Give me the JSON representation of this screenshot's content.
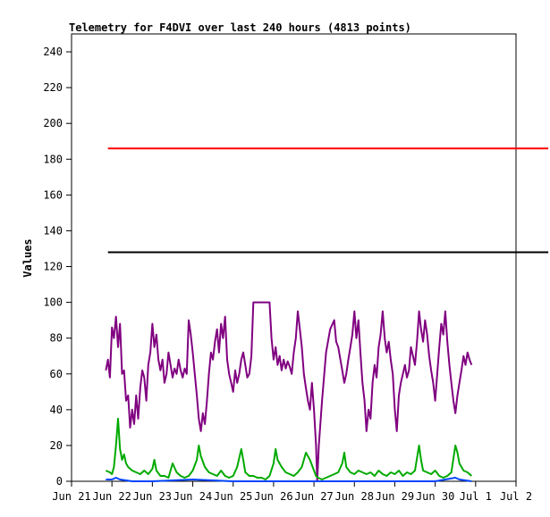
{
  "chart_data": {
    "type": "line",
    "title": "Telemetry for F4DVI over last 240 hours (4813 points)",
    "xlabel": "",
    "ylabel": "Values",
    "ylim": [
      0,
      250
    ],
    "yticks": [
      0,
      20,
      40,
      60,
      80,
      100,
      120,
      140,
      160,
      180,
      200,
      220,
      240
    ],
    "xlim": [
      "Jun 21",
      "Jul 2"
    ],
    "x_tick_labels": [
      "Jun 21",
      "Jun 22",
      "Jun 23",
      "Jun 24",
      "Jun 25",
      "Jun 26",
      "Jun 27",
      "Jun 28",
      "Jun 29",
      "Jun 30",
      "Jul 1",
      "Jul 2"
    ],
    "grid": false,
    "legend": "none",
    "series": [
      {
        "color": "#ff0000",
        "points": [
          [
            21.9,
            186
          ],
          [
            22.2,
            186
          ],
          [
            32.8,
            186
          ]
        ]
      },
      {
        "color": "#000000",
        "points": [
          [
            21.9,
            128
          ],
          [
            22.2,
            128
          ],
          [
            32.8,
            128
          ]
        ]
      },
      {
        "color": "#800080",
        "points": [
          [
            21.85,
            62
          ],
          [
            21.9,
            68
          ],
          [
            21.95,
            58
          ],
          [
            22.0,
            86
          ],
          [
            22.05,
            80
          ],
          [
            22.1,
            92
          ],
          [
            22.15,
            75
          ],
          [
            22.2,
            88
          ],
          [
            22.25,
            60
          ],
          [
            22.3,
            62
          ],
          [
            22.35,
            45
          ],
          [
            22.4,
            48
          ],
          [
            22.45,
            30
          ],
          [
            22.5,
            40
          ],
          [
            22.55,
            32
          ],
          [
            22.6,
            48
          ],
          [
            22.65,
            35
          ],
          [
            22.7,
            52
          ],
          [
            22.75,
            62
          ],
          [
            22.8,
            58
          ],
          [
            22.85,
            45
          ],
          [
            22.9,
            65
          ],
          [
            22.95,
            72
          ],
          [
            23.0,
            88
          ],
          [
            23.05,
            75
          ],
          [
            23.1,
            82
          ],
          [
            23.15,
            68
          ],
          [
            23.2,
            62
          ],
          [
            23.25,
            68
          ],
          [
            23.3,
            55
          ],
          [
            23.35,
            60
          ],
          [
            23.4,
            72
          ],
          [
            23.45,
            65
          ],
          [
            23.5,
            58
          ],
          [
            23.55,
            63
          ],
          [
            23.6,
            60
          ],
          [
            23.65,
            68
          ],
          [
            23.7,
            62
          ],
          [
            23.75,
            58
          ],
          [
            23.8,
            63
          ],
          [
            23.85,
            60
          ],
          [
            23.9,
            90
          ],
          [
            23.95,
            82
          ],
          [
            24.0,
            72
          ],
          [
            24.05,
            60
          ],
          [
            24.1,
            48
          ],
          [
            24.15,
            35
          ],
          [
            24.2,
            28
          ],
          [
            24.25,
            38
          ],
          [
            24.3,
            32
          ],
          [
            24.35,
            45
          ],
          [
            24.4,
            60
          ],
          [
            24.45,
            72
          ],
          [
            24.5,
            68
          ],
          [
            24.55,
            78
          ],
          [
            24.6,
            85
          ],
          [
            24.65,
            72
          ],
          [
            24.7,
            88
          ],
          [
            24.75,
            80
          ],
          [
            24.8,
            92
          ],
          [
            24.85,
            68
          ],
          [
            24.9,
            60
          ],
          [
            24.95,
            55
          ],
          [
            25.0,
            50
          ],
          [
            25.05,
            62
          ],
          [
            25.1,
            55
          ],
          [
            25.15,
            60
          ],
          [
            25.2,
            68
          ],
          [
            25.25,
            72
          ],
          [
            25.3,
            65
          ],
          [
            25.35,
            58
          ],
          [
            25.4,
            60
          ],
          [
            25.45,
            70
          ],
          [
            25.5,
            100
          ],
          [
            25.6,
            100
          ],
          [
            25.7,
            100
          ],
          [
            25.8,
            100
          ],
          [
            25.9,
            100
          ],
          [
            25.95,
            80
          ],
          [
            26.0,
            68
          ],
          [
            26.05,
            75
          ],
          [
            26.1,
            65
          ],
          [
            26.15,
            70
          ],
          [
            26.2,
            62
          ],
          [
            26.25,
            68
          ],
          [
            26.3,
            63
          ],
          [
            26.35,
            67
          ],
          [
            26.4,
            64
          ],
          [
            26.45,
            60
          ],
          [
            26.5,
            72
          ],
          [
            26.55,
            80
          ],
          [
            26.6,
            95
          ],
          [
            26.65,
            85
          ],
          [
            26.7,
            75
          ],
          [
            26.75,
            60
          ],
          [
            26.8,
            52
          ],
          [
            26.85,
            45
          ],
          [
            26.9,
            40
          ],
          [
            26.95,
            55
          ],
          [
            27.0,
            40
          ],
          [
            27.05,
            20
          ],
          [
            27.08,
            0
          ],
          [
            27.12,
            20
          ],
          [
            27.2,
            45
          ],
          [
            27.3,
            72
          ],
          [
            27.4,
            85
          ],
          [
            27.5,
            90
          ],
          [
            27.55,
            78
          ],
          [
            27.6,
            75
          ],
          [
            27.7,
            62
          ],
          [
            27.75,
            55
          ],
          [
            27.8,
            60
          ],
          [
            27.85,
            68
          ],
          [
            27.9,
            75
          ],
          [
            27.95,
            82
          ],
          [
            28.0,
            95
          ],
          [
            28.05,
            80
          ],
          [
            28.1,
            90
          ],
          [
            28.15,
            72
          ],
          [
            28.2,
            55
          ],
          [
            28.25,
            45
          ],
          [
            28.3,
            28
          ],
          [
            28.35,
            40
          ],
          [
            28.4,
            35
          ],
          [
            28.45,
            55
          ],
          [
            28.5,
            65
          ],
          [
            28.55,
            58
          ],
          [
            28.6,
            75
          ],
          [
            28.65,
            82
          ],
          [
            28.7,
            95
          ],
          [
            28.75,
            80
          ],
          [
            28.8,
            72
          ],
          [
            28.85,
            78
          ],
          [
            28.9,
            68
          ],
          [
            28.95,
            60
          ],
          [
            29.0,
            40
          ],
          [
            29.05,
            28
          ],
          [
            29.1,
            48
          ],
          [
            29.15,
            55
          ],
          [
            29.2,
            60
          ],
          [
            29.25,
            65
          ],
          [
            29.3,
            58
          ],
          [
            29.35,
            62
          ],
          [
            29.4,
            75
          ],
          [
            29.45,
            70
          ],
          [
            29.5,
            65
          ],
          [
            29.55,
            78
          ],
          [
            29.6,
            95
          ],
          [
            29.65,
            85
          ],
          [
            29.7,
            78
          ],
          [
            29.75,
            90
          ],
          [
            29.8,
            82
          ],
          [
            29.85,
            70
          ],
          [
            29.9,
            62
          ],
          [
            29.95,
            55
          ],
          [
            30.0,
            45
          ],
          [
            30.05,
            60
          ],
          [
            30.1,
            75
          ],
          [
            30.15,
            88
          ],
          [
            30.2,
            82
          ],
          [
            30.25,
            95
          ],
          [
            30.3,
            78
          ],
          [
            30.35,
            65
          ],
          [
            30.4,
            55
          ],
          [
            30.45,
            45
          ],
          [
            30.5,
            38
          ],
          [
            30.55,
            48
          ],
          [
            30.6,
            55
          ],
          [
            30.65,
            62
          ],
          [
            30.7,
            70
          ],
          [
            30.75,
            65
          ],
          [
            30.8,
            72
          ],
          [
            30.85,
            68
          ],
          [
            30.9,
            65
          ]
        ]
      },
      {
        "color": "#00aa00",
        "points": [
          [
            21.85,
            6
          ],
          [
            21.95,
            5
          ],
          [
            22.0,
            4
          ],
          [
            22.05,
            8
          ],
          [
            22.1,
            20
          ],
          [
            22.15,
            35
          ],
          [
            22.2,
            18
          ],
          [
            22.25,
            12
          ],
          [
            22.3,
            15
          ],
          [
            22.35,
            10
          ],
          [
            22.4,
            8
          ],
          [
            22.5,
            6
          ],
          [
            22.6,
            5
          ],
          [
            22.7,
            4
          ],
          [
            22.8,
            6
          ],
          [
            22.9,
            4
          ],
          [
            23.0,
            7
          ],
          [
            23.05,
            12
          ],
          [
            23.1,
            6
          ],
          [
            23.2,
            3
          ],
          [
            23.3,
            3
          ],
          [
            23.4,
            2
          ],
          [
            23.5,
            10
          ],
          [
            23.6,
            5
          ],
          [
            23.7,
            3
          ],
          [
            23.8,
            2
          ],
          [
            23.9,
            3
          ],
          [
            24.0,
            6
          ],
          [
            24.1,
            12
          ],
          [
            24.15,
            20
          ],
          [
            24.2,
            14
          ],
          [
            24.3,
            8
          ],
          [
            24.4,
            5
          ],
          [
            24.5,
            4
          ],
          [
            24.6,
            3
          ],
          [
            24.7,
            6
          ],
          [
            24.8,
            3
          ],
          [
            24.9,
            2
          ],
          [
            25.0,
            3
          ],
          [
            25.1,
            8
          ],
          [
            25.2,
            18
          ],
          [
            25.25,
            12
          ],
          [
            25.3,
            5
          ],
          [
            25.4,
            3
          ],
          [
            25.5,
            3
          ],
          [
            25.6,
            2
          ],
          [
            25.7,
            2
          ],
          [
            25.8,
            1
          ],
          [
            25.9,
            3
          ],
          [
            26.0,
            10
          ],
          [
            26.05,
            18
          ],
          [
            26.1,
            12
          ],
          [
            26.2,
            8
          ],
          [
            26.3,
            5
          ],
          [
            26.4,
            4
          ],
          [
            26.5,
            3
          ],
          [
            26.6,
            5
          ],
          [
            26.7,
            8
          ],
          [
            26.8,
            16
          ],
          [
            26.9,
            12
          ],
          [
            27.0,
            6
          ],
          [
            27.05,
            3
          ],
          [
            27.1,
            2
          ],
          [
            27.2,
            1
          ],
          [
            27.3,
            2
          ],
          [
            27.4,
            3
          ],
          [
            27.5,
            4
          ],
          [
            27.6,
            5
          ],
          [
            27.7,
            10
          ],
          [
            27.75,
            16
          ],
          [
            27.8,
            8
          ],
          [
            27.9,
            5
          ],
          [
            28.0,
            4
          ],
          [
            28.1,
            6
          ],
          [
            28.2,
            5
          ],
          [
            28.3,
            4
          ],
          [
            28.4,
            5
          ],
          [
            28.5,
            3
          ],
          [
            28.6,
            6
          ],
          [
            28.7,
            4
          ],
          [
            28.8,
            3
          ],
          [
            28.9,
            5
          ],
          [
            29.0,
            4
          ],
          [
            29.1,
            6
          ],
          [
            29.2,
            3
          ],
          [
            29.3,
            5
          ],
          [
            29.4,
            4
          ],
          [
            29.5,
            6
          ],
          [
            29.6,
            20
          ],
          [
            29.65,
            12
          ],
          [
            29.7,
            6
          ],
          [
            29.8,
            5
          ],
          [
            29.9,
            4
          ],
          [
            30.0,
            6
          ],
          [
            30.1,
            3
          ],
          [
            30.2,
            2
          ],
          [
            30.3,
            3
          ],
          [
            30.4,
            5
          ],
          [
            30.5,
            20
          ],
          [
            30.55,
            16
          ],
          [
            30.6,
            10
          ],
          [
            30.7,
            6
          ],
          [
            30.8,
            5
          ],
          [
            30.9,
            3
          ]
        ]
      },
      {
        "color": "#0044ff",
        "points": [
          [
            21.85,
            1
          ],
          [
            22.0,
            1
          ],
          [
            22.1,
            2
          ],
          [
            22.2,
            1
          ],
          [
            22.5,
            0
          ],
          [
            23.0,
            0
          ],
          [
            24.0,
            1
          ],
          [
            25.0,
            0
          ],
          [
            26.0,
            0
          ],
          [
            27.0,
            0
          ],
          [
            28.0,
            0
          ],
          [
            29.0,
            0
          ],
          [
            30.0,
            0
          ],
          [
            30.5,
            2
          ],
          [
            30.6,
            1
          ],
          [
            30.9,
            0
          ]
        ]
      }
    ]
  }
}
